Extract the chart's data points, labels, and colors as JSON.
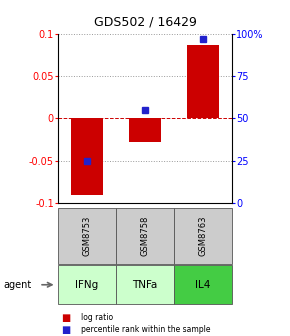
{
  "title": "GDS502 / 16429",
  "samples": [
    "GSM8753",
    "GSM8758",
    "GSM8763"
  ],
  "agents": [
    "IFNg",
    "TNFa",
    "IL4"
  ],
  "log_ratios": [
    -0.09,
    -0.028,
    0.086
  ],
  "percentile_ranks": [
    25,
    55,
    97
  ],
  "ylim_left": [
    -0.1,
    0.1
  ],
  "ylim_right": [
    0,
    100
  ],
  "yticks_left": [
    -0.1,
    -0.05,
    0,
    0.05,
    0.1
  ],
  "yticks_right": [
    0,
    25,
    50,
    75,
    100
  ],
  "ytick_labels_right": [
    "0",
    "25",
    "50",
    "75",
    "100%"
  ],
  "bar_color": "#cc0000",
  "dot_color": "#2222cc",
  "grid_color": "#999999",
  "zero_line_color": "#cc0000",
  "agent_colors": [
    "#ccffcc",
    "#ccffcc",
    "#44cc44"
  ],
  "sample_bg_color": "#cccccc",
  "bar_width": 0.55,
  "title_fontsize": 9,
  "tick_fontsize": 7,
  "label_fontsize": 6.5
}
